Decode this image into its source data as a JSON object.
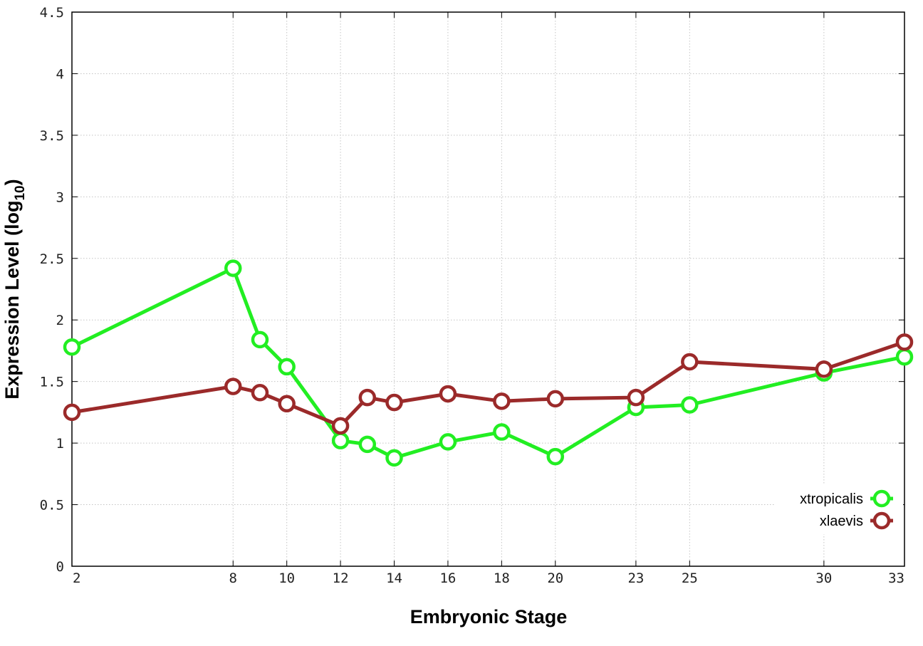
{
  "chart_data": {
    "type": "line",
    "xlabel": "Embryonic Stage",
    "ylabel": "Expression Level (log",
    "ylabel_subscript": "10",
    "ylabel_close": ")",
    "xlim": [
      2,
      33
    ],
    "ylim": [
      0,
      4.5
    ],
    "x_ticks": [
      2,
      8,
      10,
      12,
      14,
      16,
      18,
      20,
      23,
      25,
      30,
      33
    ],
    "y_ticks": [
      0,
      0.5,
      1,
      1.5,
      2,
      2.5,
      3,
      3.5,
      4,
      4.5
    ],
    "y_tick_labels": [
      "0",
      "0.5",
      "1",
      "1.5",
      "2",
      "2.5",
      "3",
      "3.5",
      "4",
      "4.5"
    ],
    "grid": true,
    "legend_position": "bottom-right",
    "series": [
      {
        "name": "xtropicalis",
        "color": "#22ee22",
        "x": [
          2,
          8,
          9,
          10,
          12,
          13,
          14,
          16,
          18,
          20,
          23,
          25,
          30,
          33
        ],
        "y": [
          1.78,
          2.42,
          1.84,
          1.62,
          1.02,
          0.99,
          0.88,
          1.01,
          1.09,
          0.89,
          1.29,
          1.31,
          1.57,
          1.7
        ]
      },
      {
        "name": "xlaevis",
        "color": "#9b2a2a",
        "x": [
          2,
          8,
          9,
          10,
          12,
          13,
          14,
          16,
          18,
          20,
          23,
          25,
          30,
          33
        ],
        "y": [
          1.25,
          1.46,
          1.41,
          1.32,
          1.14,
          1.37,
          1.33,
          1.4,
          1.34,
          1.36,
          1.37,
          1.66,
          1.6,
          1.82
        ]
      }
    ]
  }
}
